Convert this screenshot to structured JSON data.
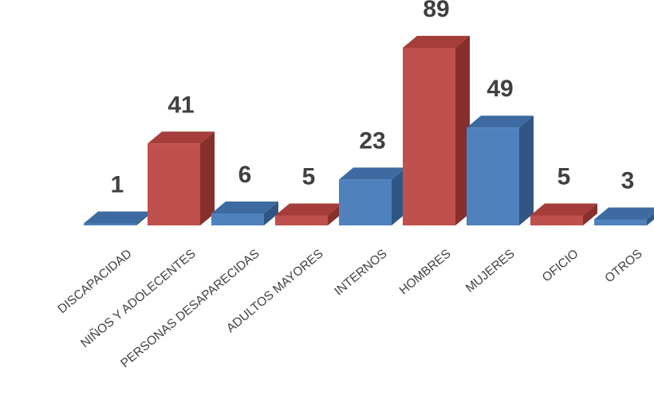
{
  "chart_data": {
    "type": "bar",
    "style": "3d-column",
    "categories": [
      "DISCAPACIDAD",
      "NIÑOS Y ADOLECENTES",
      "PERSONAS DESAPARECIDAS",
      "ADULTOS MAYORES",
      "INTERNOS",
      "HOMBRES",
      "MUJERES",
      "OFICIO",
      "OTROS"
    ],
    "values": [
      1,
      41,
      6,
      5,
      23,
      89,
      49,
      5,
      3
    ],
    "value_labels": [
      "1",
      "41",
      "6",
      "5",
      "23",
      "89",
      "49",
      "5",
      "3"
    ],
    "bar_colors": [
      "blue",
      "red",
      "blue",
      "red",
      "blue",
      "red",
      "blue",
      "red",
      "blue"
    ],
    "palette": {
      "blue": {
        "front": "#4f81bd",
        "top": "#3d6ba1",
        "side": "#2f5683"
      },
      "red": {
        "front": "#c0504d",
        "top": "#a53d3a",
        "side": "#862f2d"
      }
    },
    "label_color": "#404040",
    "title": "",
    "xlabel": "",
    "ylabel": "",
    "ylim": [
      0,
      89
    ],
    "grid": false,
    "legend": "none"
  }
}
